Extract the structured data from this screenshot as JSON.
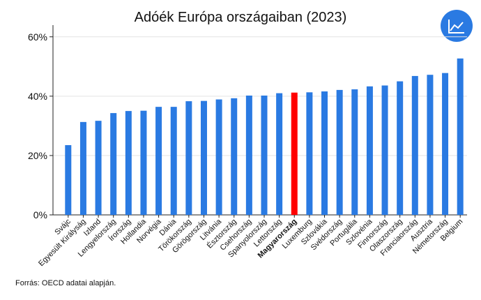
{
  "title": "Adóék Európa országaiban (2023)",
  "source": "Forrás: OECD adatai alapján.",
  "logo_icon": "chart-line-up-icon",
  "colors": {
    "bar": "#2a7ae2",
    "highlight": "#ff0000",
    "logo_bg": "#2a7ae2"
  },
  "chart_data": {
    "type": "bar",
    "title": "Adóék Európa országaiban (2023)",
    "xlabel": "",
    "ylabel": "",
    "ylim": [
      0,
      63
    ],
    "yticks": [
      0,
      20,
      40,
      60
    ],
    "ytick_labels": [
      "0%",
      "20%",
      "40%",
      "60%"
    ],
    "grid": true,
    "highlight": "Magyarország",
    "categories": [
      "Svájc",
      "Egyesült Királyság",
      "Izland",
      "Lengyelország",
      "Írország",
      "Hollandia",
      "Norvégia",
      "Dánia",
      "Törökország",
      "Görögország",
      "Litvánia",
      "Észtország",
      "Csehország",
      "Spanyolország",
      "Lettország",
      "Magyarország",
      "Luxemburg",
      "Szlovákia",
      "Svédország",
      "Portugália",
      "Szlovénia",
      "Finnország",
      "Olaszország",
      "Franciaország",
      "Ausztria",
      "Németország",
      "Belgium"
    ],
    "values": [
      23.5,
      31.3,
      31.7,
      34.3,
      35.0,
      35.1,
      36.4,
      36.4,
      38.3,
      38.4,
      38.9,
      39.3,
      40.2,
      40.2,
      41.0,
      41.2,
      41.3,
      41.6,
      42.1,
      42.3,
      43.3,
      43.6,
      45.0,
      46.8,
      47.2,
      47.8,
      52.7
    ]
  }
}
